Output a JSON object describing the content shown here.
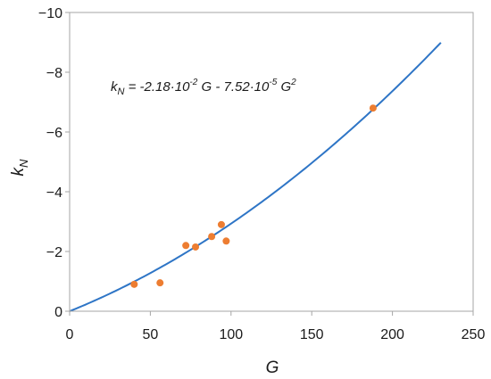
{
  "chart_data": {
    "type": "scatter",
    "title": "",
    "xlabel": "G",
    "ylabel_main": "k",
    "ylabel_sub": "N",
    "xlim": [
      0,
      250
    ],
    "ylim": [
      0,
      -10
    ],
    "y_axis_direction": "increasing downward (0 at bottom, -10 at top)",
    "grid": false,
    "x_ticks": [
      "0",
      "50",
      "100",
      "150",
      "200",
      "250"
    ],
    "y_ticks": [
      "0",
      "−2",
      "−4",
      "−6",
      "−8",
      "−10"
    ],
    "equation": {
      "k": "k",
      "sub": "N",
      "part1": " = -2.18·10",
      "exp1": "-2",
      "part2": " G - 7.52·10",
      "exp2": "-5",
      "part3": " G",
      "exp3": "2"
    },
    "fit_line": {
      "color": "#2e75c6",
      "coefficients": {
        "a": -0.0218,
        "b": -7.52e-05
      },
      "x_range": [
        0,
        230
      ]
    },
    "points": {
      "color": "#ed7d31",
      "x": [
        40,
        56,
        72,
        78,
        88,
        94,
        97,
        188
      ],
      "y": [
        -0.9,
        -0.95,
        -2.2,
        -2.15,
        -2.5,
        -2.9,
        -2.35,
        -6.8
      ]
    }
  }
}
